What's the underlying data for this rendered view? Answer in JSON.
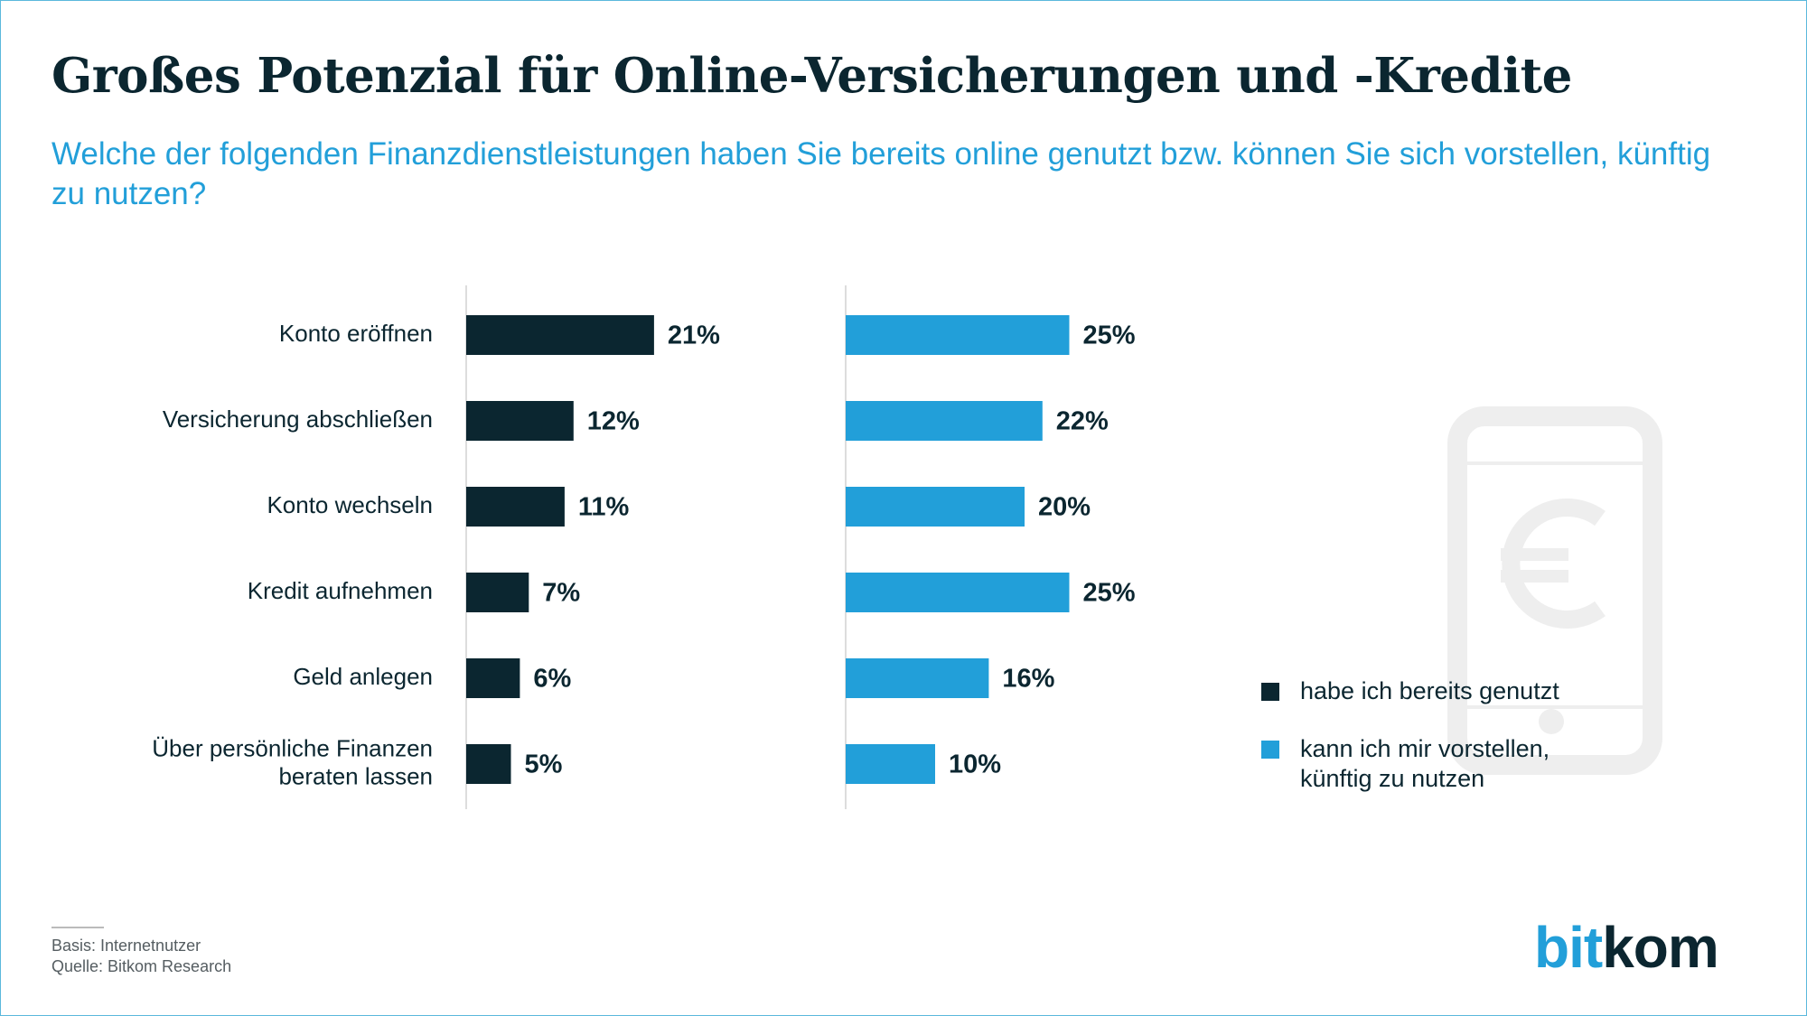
{
  "title": "Großes Potenzial für Online-Versicherungen und -Kredite",
  "subtitle": "Welche der folgenden Finanzdienstleistungen haben Sie bereits online genutzt bzw. können Sie sich vorstellen, künftig zu nutzen?",
  "colors": {
    "series_1": "#0b2630",
    "series_2": "#229fd9",
    "title": "#0b2630",
    "subtitle": "#229fd9",
    "border": "#5bb8dc",
    "logo_bit": "#229fd9",
    "logo_kom": "#0b2630",
    "phone_icon": "#eeeeee"
  },
  "chart_data": {
    "type": "bar",
    "orientation": "horizontal",
    "grid": false,
    "value_suffix": "%",
    "categories": [
      [
        "Konto eröffnen"
      ],
      [
        "Versicherung abschließen"
      ],
      [
        "Konto wechseln"
      ],
      [
        "Kredit aufnehmen"
      ],
      [
        "Geld anlegen"
      ],
      [
        "Über persönliche Finanzen",
        "beraten lassen"
      ]
    ],
    "xlim": [
      0,
      25
    ],
    "series": [
      {
        "name": "habe ich bereits genutzt",
        "values": [
          21,
          12,
          11,
          7,
          6,
          5
        ]
      },
      {
        "name": "kann ich mir vorstellen, künftig zu nutzen",
        "values": [
          25,
          22,
          20,
          25,
          16,
          10
        ]
      }
    ],
    "legend_placement": "right"
  },
  "legend": [
    {
      "label": "habe ich bereits genutzt"
    },
    {
      "label_lines": [
        "kann ich mir vorstellen,",
        "künftig zu nutzen"
      ]
    }
  ],
  "footer": {
    "basis": "Basis: Internetnutzer",
    "source": "Quelle: Bitkom Research"
  },
  "logo": {
    "part1": "bit",
    "part2": "kom"
  },
  "icons": {
    "background": "smartphone-euro-icon"
  }
}
